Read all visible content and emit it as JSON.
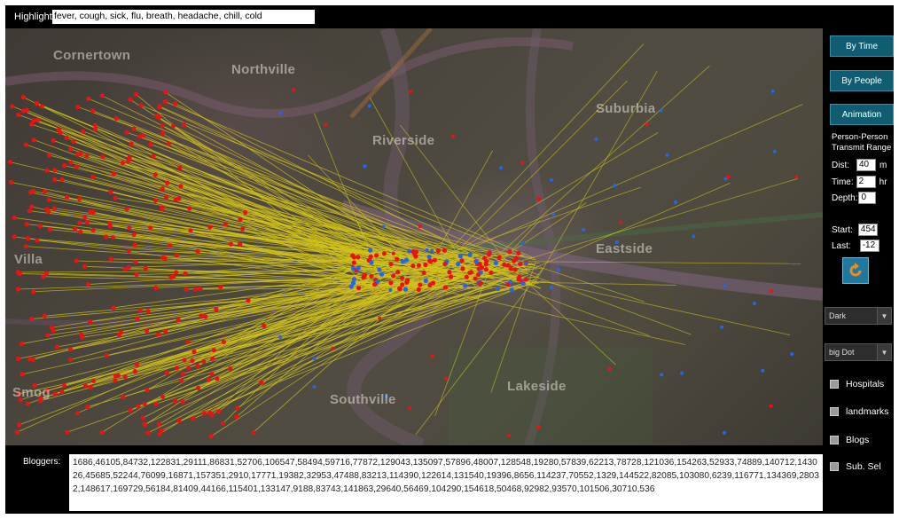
{
  "highlight": {
    "label": "Highlight:",
    "value": "fever, cough, sick, flu, breath, headache, chill, cold"
  },
  "map": {
    "place_labels": [
      "Cornertown",
      "Northville",
      "Suburbia",
      "Riverside",
      "Villa",
      "Eastside",
      "Southville",
      "Lakeside",
      "Smog"
    ],
    "colors": {
      "sick_dot": "#ee1111",
      "other_dot": "#2266ee",
      "transmit_line": "#d4c41a"
    }
  },
  "side": {
    "by_time": "By Time",
    "by_people": "By People",
    "animation": "Animation",
    "transmit_title_1": "Person-Person",
    "transmit_title_2": "Transmit Range",
    "dist_label": "Dist:",
    "dist_value": "40",
    "dist_unit": "m",
    "time_label": "Time:",
    "time_value": "2",
    "time_unit": "hr",
    "depth_label": "Depth:",
    "depth_value": "0",
    "start_label": "Start:",
    "start_value": "454",
    "last_label": "Last:",
    "last_value": "-12",
    "refresh_icon": "refresh-icon",
    "theme_select": "Dark",
    "dot_select": "big Dot",
    "checks": [
      "Hospitals",
      "landmarks",
      "Blogs",
      "Sub. Sel"
    ]
  },
  "bloggers": {
    "label": "Bloggers:",
    "list": "1686,46105,84732,122831,29111,86831,52706,106547,58494,59716,77872,129043,135097,57896,48007,128548,19280,57839,62213,78728,121036,154263,52933,74889,140712,143026,45685,52244,76099,16871,157351,2910,17771,19382,32953,47488,83213,114390,122614,131540,19396,8656,114237,70552,1329,144522,82085,103080,6239,116771,134369,28032,148617,169729,56184,81409,44166,115401,133147,9188,83743,141863,29640,56469,104290,154618,50468,92982,93570,101506,30710,536"
  }
}
